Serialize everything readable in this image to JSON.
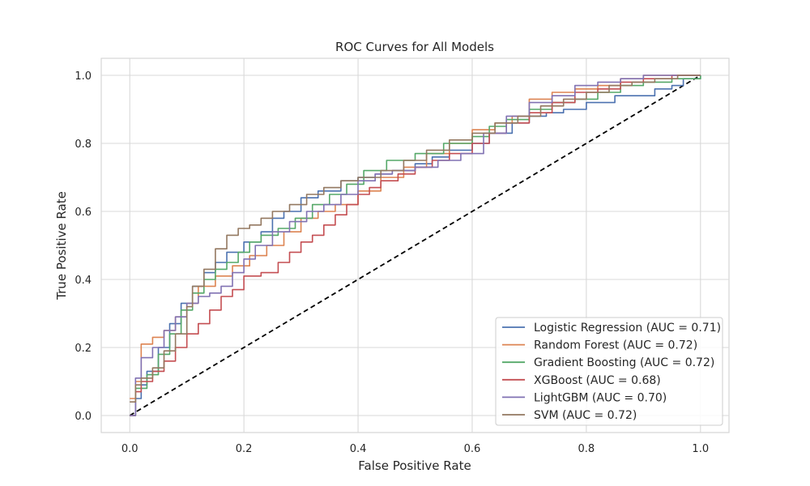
{
  "chart_data": {
    "type": "line",
    "title": "ROC Curves for All Models",
    "xlabel": "False Positive Rate",
    "ylabel": "True Positive Rate",
    "xlim": [
      -0.05,
      1.05
    ],
    "ylim": [
      -0.05,
      1.05
    ],
    "xticks": [
      "0.0",
      "0.2",
      "0.4",
      "0.6",
      "0.8",
      "1.0"
    ],
    "yticks": [
      "0.0",
      "0.2",
      "0.4",
      "0.6",
      "0.8",
      "1.0"
    ],
    "grid": true,
    "legend_position": "lower-right",
    "series": [
      {
        "name": "Logistic Regression (AUC = 0.71)",
        "color": "#4c72b0",
        "x": [
          0,
          0.01,
          0.02,
          0.03,
          0.05,
          0.07,
          0.09,
          0.11,
          0.13,
          0.15,
          0.17,
          0.2,
          0.23,
          0.25,
          0.27,
          0.3,
          0.33,
          0.37,
          0.4,
          0.43,
          0.46,
          0.5,
          0.53,
          0.56,
          0.6,
          0.63,
          0.67,
          0.7,
          0.73,
          0.76,
          0.8,
          0.85,
          0.88,
          0.92,
          0.95,
          0.97,
          1.0
        ],
        "y": [
          0,
          0.05,
          0.09,
          0.13,
          0.2,
          0.27,
          0.33,
          0.38,
          0.42,
          0.45,
          0.48,
          0.51,
          0.54,
          0.58,
          0.6,
          0.64,
          0.66,
          0.69,
          0.7,
          0.71,
          0.72,
          0.74,
          0.76,
          0.78,
          0.8,
          0.83,
          0.86,
          0.88,
          0.89,
          0.9,
          0.92,
          0.94,
          0.94,
          0.96,
          0.97,
          0.99,
          1.0
        ]
      },
      {
        "name": "Random Forest (AUC = 0.72)",
        "color": "#dd8452",
        "x": [
          0,
          0.01,
          0.02,
          0.04,
          0.06,
          0.08,
          0.1,
          0.12,
          0.15,
          0.18,
          0.21,
          0.24,
          0.27,
          0.3,
          0.33,
          0.36,
          0.4,
          0.44,
          0.48,
          0.52,
          0.56,
          0.6,
          0.64,
          0.67,
          0.7,
          0.74,
          0.78,
          0.82,
          0.86,
          0.9,
          0.94,
          1.0
        ],
        "y": [
          0.05,
          0.1,
          0.21,
          0.23,
          0.25,
          0.29,
          0.33,
          0.38,
          0.41,
          0.44,
          0.47,
          0.5,
          0.54,
          0.58,
          0.6,
          0.62,
          0.66,
          0.7,
          0.73,
          0.77,
          0.8,
          0.84,
          0.86,
          0.88,
          0.93,
          0.95,
          0.96,
          0.97,
          0.99,
          1.0,
          1.0,
          1.0
        ]
      },
      {
        "name": "Gradient Boosting (AUC = 0.72)",
        "color": "#55a868",
        "x": [
          0,
          0.01,
          0.03,
          0.05,
          0.07,
          0.09,
          0.11,
          0.13,
          0.15,
          0.17,
          0.19,
          0.21,
          0.23,
          0.26,
          0.29,
          0.32,
          0.35,
          0.38,
          0.41,
          0.45,
          0.5,
          0.55,
          0.6,
          0.63,
          0.66,
          0.7,
          0.74,
          0.78,
          0.82,
          0.86,
          0.9,
          0.95,
          1.0
        ],
        "y": [
          0,
          0.08,
          0.12,
          0.18,
          0.24,
          0.31,
          0.36,
          0.4,
          0.43,
          0.45,
          0.48,
          0.51,
          0.53,
          0.55,
          0.58,
          0.62,
          0.65,
          0.68,
          0.72,
          0.75,
          0.77,
          0.8,
          0.82,
          0.85,
          0.87,
          0.9,
          0.92,
          0.93,
          0.95,
          0.97,
          0.98,
          0.99,
          1.0
        ]
      },
      {
        "name": "XGBoost (AUC = 0.68)",
        "color": "#c44e52",
        "x": [
          0,
          0.01,
          0.02,
          0.04,
          0.06,
          0.08,
          0.1,
          0.12,
          0.14,
          0.16,
          0.18,
          0.2,
          0.23,
          0.26,
          0.28,
          0.3,
          0.32,
          0.34,
          0.36,
          0.38,
          0.4,
          0.42,
          0.44,
          0.47,
          0.5,
          0.53,
          0.56,
          0.6,
          0.63,
          0.66,
          0.7,
          0.74,
          0.78,
          0.82,
          0.86,
          0.9,
          0.95,
          1.0
        ],
        "y": [
          0,
          0.07,
          0.1,
          0.13,
          0.16,
          0.2,
          0.24,
          0.27,
          0.31,
          0.35,
          0.37,
          0.41,
          0.42,
          0.45,
          0.48,
          0.51,
          0.53,
          0.56,
          0.59,
          0.62,
          0.65,
          0.67,
          0.69,
          0.71,
          0.73,
          0.75,
          0.77,
          0.8,
          0.83,
          0.86,
          0.89,
          0.92,
          0.95,
          0.96,
          0.98,
          0.99,
          1.0,
          1.0
        ]
      },
      {
        "name": "LightGBM (AUC = 0.70)",
        "color": "#8172b3",
        "x": [
          0,
          0.01,
          0.02,
          0.04,
          0.06,
          0.08,
          0.1,
          0.12,
          0.14,
          0.16,
          0.18,
          0.2,
          0.22,
          0.25,
          0.28,
          0.31,
          0.34,
          0.37,
          0.4,
          0.43,
          0.46,
          0.5,
          0.54,
          0.58,
          0.62,
          0.66,
          0.7,
          0.74,
          0.78,
          0.82,
          0.86,
          0.9,
          0.95,
          1.0
        ],
        "y": [
          0,
          0.11,
          0.17,
          0.2,
          0.25,
          0.29,
          0.33,
          0.35,
          0.36,
          0.38,
          0.42,
          0.46,
          0.5,
          0.54,
          0.57,
          0.6,
          0.62,
          0.65,
          0.69,
          0.71,
          0.72,
          0.73,
          0.75,
          0.77,
          0.83,
          0.88,
          0.92,
          0.94,
          0.97,
          0.98,
          0.99,
          1.0,
          1.0,
          1.0
        ]
      },
      {
        "name": "SVM (AUC = 0.72)",
        "color": "#937860",
        "x": [
          0,
          0.01,
          0.02,
          0.04,
          0.06,
          0.08,
          0.1,
          0.11,
          0.13,
          0.15,
          0.17,
          0.19,
          0.21,
          0.23,
          0.25,
          0.28,
          0.31,
          0.34,
          0.37,
          0.4,
          0.44,
          0.48,
          0.52,
          0.56,
          0.6,
          0.64,
          0.68,
          0.72,
          0.76,
          0.8,
          0.84,
          0.88,
          0.92,
          0.96,
          1.0
        ],
        "y": [
          0.04,
          0.09,
          0.11,
          0.14,
          0.19,
          0.24,
          0.32,
          0.38,
          0.43,
          0.49,
          0.53,
          0.55,
          0.56,
          0.58,
          0.6,
          0.62,
          0.65,
          0.67,
          0.69,
          0.7,
          0.72,
          0.75,
          0.78,
          0.81,
          0.83,
          0.86,
          0.88,
          0.91,
          0.93,
          0.95,
          0.97,
          0.98,
          0.99,
          1.0,
          1.0
        ]
      }
    ],
    "reference_line": {
      "x": [
        0,
        1
      ],
      "y": [
        0,
        1
      ],
      "style": "dashed",
      "color": "#000000"
    }
  }
}
